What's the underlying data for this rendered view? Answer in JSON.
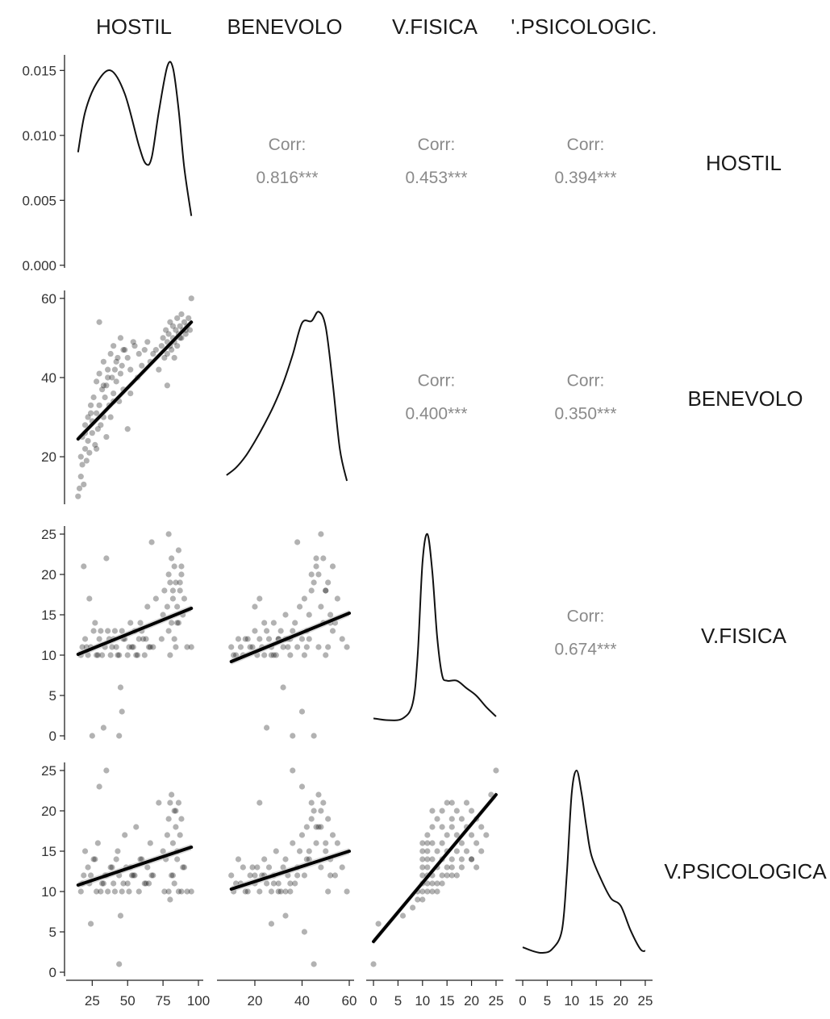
{
  "chart_data": {
    "type": "scatter",
    "title": "",
    "variables": [
      "HOSTIL",
      "BENEVOLO",
      "V.FISICA",
      "V.PSICOLOGICA"
    ],
    "column_labels": [
      "HOSTIL",
      "BENEVOLO",
      "V.FISICA",
      "'.PSICOLOGIC."
    ],
    "row_labels": [
      "HOSTIL",
      "BENEVOLO",
      "V.FISICA",
      "V.PSICOLOGICA"
    ],
    "corr_label": "Corr:",
    "correlations": [
      {
        "row": 0,
        "col": 1,
        "value": "0.816***"
      },
      {
        "row": 0,
        "col": 2,
        "value": "0.453***"
      },
      {
        "row": 0,
        "col": 3,
        "value": "0.394***"
      },
      {
        "row": 1,
        "col": 2,
        "value": "0.400***"
      },
      {
        "row": 1,
        "col": 3,
        "value": "0.350***"
      },
      {
        "row": 2,
        "col": 3,
        "value": "0.674***"
      }
    ],
    "x_axes": [
      {
        "range": [
          10,
          100
        ],
        "ticks": [
          "25",
          "50",
          "75",
          "100"
        ]
      },
      {
        "range": [
          6,
          60
        ],
        "ticks": [
          "20",
          "40",
          "60"
        ]
      },
      {
        "range": [
          -0.5,
          25.5
        ],
        "ticks": [
          "0",
          "5",
          "10",
          "15",
          "20",
          "25"
        ]
      },
      {
        "range": [
          -0.5,
          25.5
        ],
        "ticks": [
          "0",
          "5",
          "10",
          "15",
          "20",
          "25"
        ]
      }
    ],
    "y_axes": [
      {
        "range": [
          -0.0002,
          0.0162
        ],
        "ticks": [
          "0.000",
          "0.005",
          "0.010",
          "0.015"
        ]
      },
      {
        "range": [
          8,
          62
        ],
        "ticks": [
          "20",
          "40",
          "60"
        ]
      },
      {
        "range": [
          -0.5,
          26
        ],
        "ticks": [
          "0",
          "5",
          "10",
          "15",
          "20",
          "25"
        ]
      },
      {
        "range": [
          -0.5,
          26
        ],
        "ticks": [
          "0",
          "5",
          "10",
          "15",
          "20",
          "25"
        ]
      }
    ],
    "density": [
      {
        "var": "HOSTIL",
        "x": [
          15,
          20,
          28,
          38,
          48,
          58,
          63,
          67,
          72,
          78,
          82,
          86,
          90,
          95
        ],
        "y": [
          0.0087,
          0.0118,
          0.014,
          0.015,
          0.0132,
          0.0092,
          0.0078,
          0.0083,
          0.0118,
          0.0153,
          0.0152,
          0.012,
          0.0075,
          0.0038
        ]
      },
      {
        "var": "BENEVOLO",
        "x": [
          8,
          12,
          16,
          20,
          24,
          28,
          32,
          36,
          40,
          44,
          47,
          50,
          53,
          56,
          59
        ],
        "y": [
          0.06,
          0.1,
          0.16,
          0.24,
          0.33,
          0.43,
          0.55,
          0.7,
          0.87,
          0.88,
          0.93,
          0.85,
          0.55,
          0.2,
          0.03
        ]
      },
      {
        "var": "V.FISICA",
        "x": [
          0,
          3,
          6,
          8,
          9,
          10,
          11,
          12,
          13,
          14,
          15,
          17,
          19,
          21,
          23,
          25
        ],
        "y": [
          0.02,
          0.01,
          0.02,
          0.1,
          0.35,
          0.85,
          1.0,
          0.8,
          0.45,
          0.25,
          0.22,
          0.22,
          0.18,
          0.14,
          0.08,
          0.03
        ]
      },
      {
        "var": "V.PSICOLOGICA",
        "x": [
          0,
          2,
          4,
          6,
          8,
          9,
          10,
          11,
          12,
          13,
          14,
          16,
          18,
          20,
          22,
          24,
          25
        ],
        "y": [
          0.06,
          0.04,
          0.03,
          0.05,
          0.15,
          0.45,
          0.88,
          1.0,
          0.88,
          0.7,
          0.55,
          0.42,
          0.32,
          0.28,
          0.15,
          0.05,
          0.04
        ]
      }
    ],
    "fit_lines": [
      {
        "row": 1,
        "col": 0,
        "x": [
          15,
          95
        ],
        "y": [
          24.5,
          54
        ]
      },
      {
        "row": 2,
        "col": 0,
        "x": [
          15,
          95
        ],
        "y": [
          10.1,
          15.8
        ]
      },
      {
        "row": 2,
        "col": 1,
        "x": [
          10,
          60
        ],
        "y": [
          9.2,
          15.2
        ]
      },
      {
        "row": 3,
        "col": 0,
        "x": [
          15,
          95
        ],
        "y": [
          10.8,
          15.5
        ]
      },
      {
        "row": 3,
        "col": 1,
        "x": [
          10,
          60
        ],
        "y": [
          10.3,
          15.0
        ]
      },
      {
        "row": 3,
        "col": 2,
        "x": [
          0,
          25
        ],
        "y": [
          3.8,
          22
        ]
      }
    ],
    "scatter": [
      {
        "row": 1,
        "col": 0,
        "x": [
          15,
          16,
          17,
          18,
          18,
          19,
          20,
          20,
          21,
          22,
          22,
          23,
          24,
          25,
          25,
          26,
          27,
          28,
          28,
          29,
          30,
          30,
          31,
          32,
          33,
          33,
          34,
          35,
          35,
          36,
          37,
          38,
          38,
          39,
          40,
          40,
          41,
          42,
          43,
          44,
          45,
          45,
          46,
          47,
          48,
          50,
          52,
          54,
          55,
          57,
          58,
          60,
          62,
          64,
          66,
          68,
          70,
          72,
          74,
          75,
          76,
          77,
          78,
          78,
          79,
          80,
          80,
          81,
          82,
          82,
          83,
          84,
          85,
          85,
          86,
          87,
          88,
          88,
          89,
          90,
          91,
          92,
          93,
          94,
          95,
          17,
          20,
          24,
          28,
          33,
          36,
          42,
          47,
          52,
          78,
          83,
          87,
          91,
          30,
          40,
          50
        ],
        "y": [
          10,
          12,
          15,
          18,
          25,
          13,
          22,
          28,
          19,
          30,
          24,
          21,
          33,
          26,
          29,
          35,
          23,
          31,
          39,
          27,
          33,
          41,
          28,
          37,
          30,
          44,
          35,
          38,
          25,
          42,
          33,
          46,
          30,
          40,
          36,
          48,
          42,
          39,
          45,
          34,
          41,
          50,
          43,
          37,
          47,
          45,
          42,
          49,
          48,
          40,
          46,
          43,
          47,
          49,
          44,
          46,
          47,
          42,
          48,
          50,
          45,
          52,
          49,
          46,
          51,
          48,
          54,
          47,
          50,
          53,
          49,
          52,
          55,
          48,
          51,
          53,
          50,
          56,
          52,
          54,
          51,
          53,
          55,
          52,
          60,
          20,
          26,
          31,
          22,
          38,
          40,
          44,
          47,
          36,
          38,
          45,
          50,
          52,
          54,
          34,
          27
        ]
      },
      {
        "row": 2,
        "col": 0,
        "x": [
          17,
          18,
          20,
          22,
          24,
          26,
          28,
          30,
          32,
          34,
          36,
          38,
          40,
          42,
          44,
          46,
          48,
          50,
          52,
          54,
          56,
          58,
          60,
          62,
          64,
          66,
          70,
          74,
          76,
          78,
          79,
          80,
          81,
          82,
          83,
          84,
          85,
          86,
          87,
          88,
          89,
          90,
          92,
          95,
          19,
          23,
          27,
          31,
          35,
          39,
          43,
          47,
          51,
          55,
          59,
          63,
          67,
          75,
          79,
          82,
          85,
          88,
          25,
          33,
          44,
          45,
          46,
          68,
          80,
          83,
          86,
          21,
          29,
          37,
          41,
          53,
          57,
          61,
          65,
          79,
          81,
          84,
          87
        ],
        "y": [
          10,
          11,
          12,
          10,
          11,
          13,
          10,
          12,
          10,
          11,
          13,
          10,
          12,
          11,
          10,
          13,
          12,
          10,
          14,
          11,
          10,
          12,
          13,
          10,
          16,
          11,
          17,
          12,
          18,
          16,
          20,
          19,
          22,
          17,
          21,
          19,
          14,
          23,
          18,
          20,
          15,
          17,
          11,
          11,
          21,
          17,
          14,
          13,
          22,
          11,
          10,
          12,
          11,
          13,
          14,
          12,
          24,
          15,
          25,
          18,
          16,
          21,
          0,
          1,
          0,
          6,
          3,
          11,
          10,
          12,
          14,
          11,
          10,
          12,
          13,
          11,
          10,
          12,
          11,
          13,
          14,
          11,
          19
        ]
      },
      {
        "row": 2,
        "col": 1,
        "x": [
          10,
          11,
          13,
          14,
          15,
          17,
          18,
          20,
          21,
          22,
          23,
          24,
          25,
          26,
          27,
          28,
          29,
          30,
          31,
          32,
          33,
          34,
          35,
          36,
          37,
          38,
          39,
          40,
          41,
          42,
          43,
          44,
          45,
          46,
          47,
          48,
          49,
          50,
          51,
          52,
          53,
          54,
          55,
          57,
          59,
          12,
          16,
          19,
          24,
          28,
          33,
          38,
          42,
          44,
          46,
          48,
          50,
          52,
          25,
          32,
          36,
          40,
          45,
          47,
          50,
          53,
          22,
          27,
          30,
          34,
          41,
          43,
          49,
          51,
          20,
          35
        ],
        "y": [
          11,
          10,
          12,
          11,
          10,
          12,
          11,
          13,
          10,
          12,
          11,
          10,
          13,
          12,
          11,
          14,
          10,
          12,
          13,
          11,
          15,
          12,
          10,
          13,
          14,
          11,
          16,
          12,
          17,
          13,
          15,
          18,
          19,
          21,
          20,
          16,
          22,
          18,
          19,
          15,
          21,
          14,
          17,
          12,
          11,
          10,
          12,
          11,
          14,
          10,
          12,
          24,
          11,
          20,
          22,
          25,
          18,
          14,
          1,
          6,
          0,
          3,
          0,
          11,
          10,
          13,
          17,
          10,
          12,
          11,
          10,
          12,
          14,
          11,
          16,
          12
        ]
      },
      {
        "row": 3,
        "col": 0,
        "x": [
          17,
          18,
          20,
          22,
          24,
          26,
          28,
          30,
          32,
          34,
          36,
          38,
          40,
          42,
          44,
          46,
          48,
          50,
          52,
          54,
          56,
          58,
          60,
          62,
          64,
          66,
          68,
          72,
          75,
          77,
          78,
          79,
          80,
          81,
          82,
          83,
          84,
          85,
          86,
          87,
          88,
          90,
          92,
          95,
          19,
          23,
          27,
          31,
          35,
          39,
          43,
          47,
          51,
          55,
          59,
          63,
          67,
          76,
          80,
          83,
          86,
          89,
          24,
          44,
          35,
          45,
          81,
          84,
          29,
          41,
          53,
          65,
          79,
          82,
          85,
          88,
          33,
          49
        ],
        "y": [
          10,
          11,
          15,
          13,
          12,
          14,
          10,
          23,
          11,
          12,
          10,
          13,
          11,
          14,
          12,
          10,
          17,
          11,
          13,
          12,
          18,
          10,
          14,
          11,
          13,
          16,
          12,
          21,
          15,
          14,
          17,
          19,
          21,
          22,
          16,
          20,
          18,
          15,
          21,
          17,
          19,
          13,
          10,
          10,
          12,
          11,
          14,
          10,
          12,
          13,
          15,
          11,
          10,
          12,
          14,
          11,
          12,
          10,
          9,
          11,
          10,
          13,
          6,
          1,
          25,
          7,
          12,
          20,
          16,
          10,
          12,
          11,
          10,
          12,
          14,
          10,
          11,
          13
        ]
      },
      {
        "row": 3,
        "col": 1,
        "x": [
          10,
          11,
          13,
          14,
          15,
          17,
          18,
          20,
          21,
          22,
          23,
          24,
          25,
          26,
          27,
          28,
          29,
          30,
          31,
          32,
          33,
          34,
          35,
          36,
          37,
          38,
          39,
          40,
          41,
          42,
          43,
          44,
          45,
          46,
          47,
          48,
          49,
          50,
          51,
          52,
          53,
          54,
          55,
          57,
          59,
          12,
          16,
          19,
          24,
          28,
          33,
          38,
          42,
          44,
          46,
          48,
          50,
          52,
          27,
          33,
          36,
          41,
          45,
          48,
          22,
          30,
          40,
          47,
          20,
          35,
          43,
          51
        ],
        "y": [
          12,
          10,
          14,
          11,
          13,
          10,
          12,
          11,
          13,
          10,
          12,
          14,
          11,
          13,
          10,
          12,
          15,
          11,
          10,
          13,
          14,
          12,
          10,
          16,
          11,
          13,
          15,
          17,
          12,
          18,
          14,
          19,
          20,
          16,
          22,
          18,
          21,
          15,
          19,
          14,
          17,
          12,
          16,
          13,
          10,
          11,
          10,
          13,
          12,
          11,
          10,
          12,
          14,
          21,
          18,
          20,
          16,
          12,
          6,
          7,
          25,
          5,
          1,
          13,
          21,
          10,
          23,
          18,
          12,
          11,
          15,
          10
        ]
      },
      {
        "row": 3,
        "col": 2,
        "x": [
          10,
          10,
          10,
          10,
          10,
          10,
          11,
          11,
          11,
          11,
          11,
          11,
          12,
          12,
          12,
          12,
          12,
          13,
          13,
          13,
          13,
          14,
          14,
          14,
          14,
          15,
          15,
          15,
          15,
          16,
          16,
          16,
          16,
          17,
          17,
          17,
          18,
          18,
          18,
          19,
          19,
          19,
          20,
          20,
          20,
          21,
          21,
          22,
          22,
          23,
          24,
          25,
          0,
          1,
          6,
          8,
          9,
          9,
          10,
          11,
          12,
          14,
          15,
          16,
          17,
          18,
          20,
          21,
          10,
          11,
          13,
          12,
          14,
          16
        ],
        "y": [
          10,
          11,
          12,
          13,
          14,
          15,
          10,
          11,
          12,
          13,
          16,
          17,
          10,
          11,
          12,
          14,
          18,
          11,
          13,
          15,
          19,
          12,
          14,
          16,
          20,
          13,
          15,
          17,
          21,
          12,
          14,
          18,
          21,
          15,
          17,
          20,
          14,
          16,
          19,
          15,
          18,
          21,
          14,
          17,
          20,
          16,
          19,
          15,
          18,
          17,
          22,
          25,
          1,
          6,
          7,
          8,
          9,
          10,
          16,
          15,
          20,
          11,
          12,
          13,
          12,
          13,
          14,
          13,
          9,
          14,
          10,
          16,
          18,
          19
        ]
      }
    ]
  }
}
